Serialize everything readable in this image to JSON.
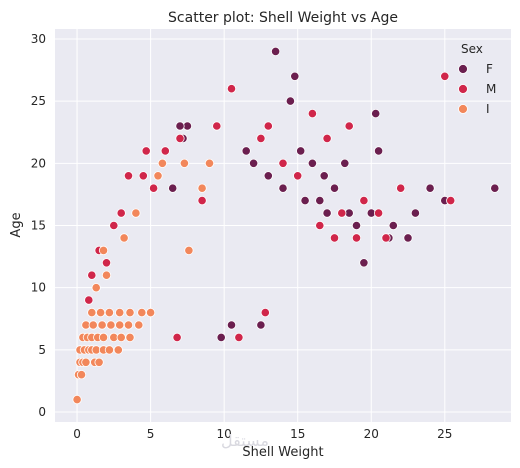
{
  "chart_data": {
    "type": "scatter",
    "title": "Scatter plot: Shell Weight vs Age",
    "xlabel": "Shell Weight",
    "ylabel": "Age",
    "xlim": [
      -1.5,
      29.5
    ],
    "ylim": [
      -0.8,
      30.8
    ],
    "xticks": [
      0,
      5,
      10,
      15,
      20,
      25
    ],
    "yticks": [
      0,
      5,
      10,
      15,
      20,
      25,
      30
    ],
    "grid": true,
    "background": "#eaeaf2",
    "legend": {
      "title": "Sex",
      "position": "top-right"
    },
    "series": [
      {
        "name": "F",
        "color": "#6b1f4f",
        "points": [
          [
            13.5,
            29
          ],
          [
            14.8,
            27
          ],
          [
            14.5,
            25
          ],
          [
            28.4,
            18
          ],
          [
            23.0,
            16
          ],
          [
            22.5,
            14
          ],
          [
            19.5,
            12
          ],
          [
            20.3,
            24
          ],
          [
            20.5,
            21
          ],
          [
            18.2,
            20
          ],
          [
            16.8,
            19
          ],
          [
            15.2,
            21
          ],
          [
            16.0,
            20
          ],
          [
            17.5,
            18
          ],
          [
            10.5,
            7
          ],
          [
            9.8,
            6
          ],
          [
            12.5,
            7
          ],
          [
            21.5,
            15
          ],
          [
            21.2,
            14
          ],
          [
            20.0,
            16
          ],
          [
            19.0,
            15
          ],
          [
            18.5,
            16
          ],
          [
            25.0,
            17
          ],
          [
            24.0,
            18
          ],
          [
            17.0,
            16
          ],
          [
            16.5,
            17
          ],
          [
            15.5,
            17
          ],
          [
            14.0,
            18
          ],
          [
            13.0,
            19
          ],
          [
            12.0,
            20
          ],
          [
            11.5,
            21
          ],
          [
            7.5,
            23
          ],
          [
            7.0,
            23
          ],
          [
            7.2,
            22
          ],
          [
            6.5,
            18
          ]
        ]
      },
      {
        "name": "M",
        "color": "#d0264a",
        "points": [
          [
            10.5,
            26
          ],
          [
            25.0,
            27
          ],
          [
            16.0,
            24
          ],
          [
            18.5,
            23
          ],
          [
            13.0,
            23
          ],
          [
            17.0,
            22
          ],
          [
            22.0,
            18
          ],
          [
            25.4,
            17
          ],
          [
            21.0,
            14
          ],
          [
            20.5,
            16
          ],
          [
            12.5,
            22
          ],
          [
            9.5,
            23
          ],
          [
            7.0,
            22
          ],
          [
            4.7,
            21
          ],
          [
            6.0,
            21
          ],
          [
            3.5,
            19
          ],
          [
            4.5,
            19
          ],
          [
            5.2,
            18
          ],
          [
            12.8,
            8
          ],
          [
            6.8,
            6
          ],
          [
            11.0,
            6
          ],
          [
            16.5,
            15
          ],
          [
            19.5,
            17
          ],
          [
            18.0,
            16
          ],
          [
            17.5,
            14
          ],
          [
            19.0,
            14
          ],
          [
            15.0,
            19
          ],
          [
            14.0,
            20
          ],
          [
            8.5,
            17
          ],
          [
            3.0,
            16
          ],
          [
            2.5,
            15
          ],
          [
            1.5,
            13
          ],
          [
            1.0,
            11
          ],
          [
            2.0,
            12
          ],
          [
            0.8,
            9
          ]
        ]
      },
      {
        "name": "I",
        "color": "#f2875b",
        "points": [
          [
            0.0,
            1
          ],
          [
            0.1,
            3
          ],
          [
            0.3,
            3
          ],
          [
            0.2,
            4
          ],
          [
            0.4,
            4
          ],
          [
            0.6,
            4
          ],
          [
            1.2,
            4
          ],
          [
            1.5,
            4
          ],
          [
            0.2,
            5
          ],
          [
            0.5,
            5
          ],
          [
            0.8,
            5
          ],
          [
            1.0,
            5
          ],
          [
            1.3,
            5
          ],
          [
            1.8,
            5
          ],
          [
            2.2,
            5
          ],
          [
            2.8,
            5
          ],
          [
            0.4,
            6
          ],
          [
            0.7,
            6
          ],
          [
            1.0,
            6
          ],
          [
            1.4,
            6
          ],
          [
            1.8,
            6
          ],
          [
            2.5,
            6
          ],
          [
            3.0,
            6
          ],
          [
            3.6,
            6
          ],
          [
            0.6,
            7
          ],
          [
            1.1,
            7
          ],
          [
            1.7,
            7
          ],
          [
            2.3,
            7
          ],
          [
            2.9,
            7
          ],
          [
            3.5,
            7
          ],
          [
            4.2,
            7
          ],
          [
            1.0,
            8
          ],
          [
            1.6,
            8
          ],
          [
            2.2,
            8
          ],
          [
            2.9,
            8
          ],
          [
            3.6,
            8
          ],
          [
            4.4,
            8
          ],
          [
            5.0,
            8
          ],
          [
            5.5,
            19
          ],
          [
            7.3,
            20
          ],
          [
            5.8,
            20
          ],
          [
            8.5,
            18
          ],
          [
            9.0,
            20
          ],
          [
            1.8,
            13
          ],
          [
            1.3,
            10
          ],
          [
            2.0,
            11
          ],
          [
            3.2,
            14
          ],
          [
            4.0,
            16
          ],
          [
            7.6,
            13
          ]
        ]
      }
    ]
  },
  "watermark": "مستقل"
}
